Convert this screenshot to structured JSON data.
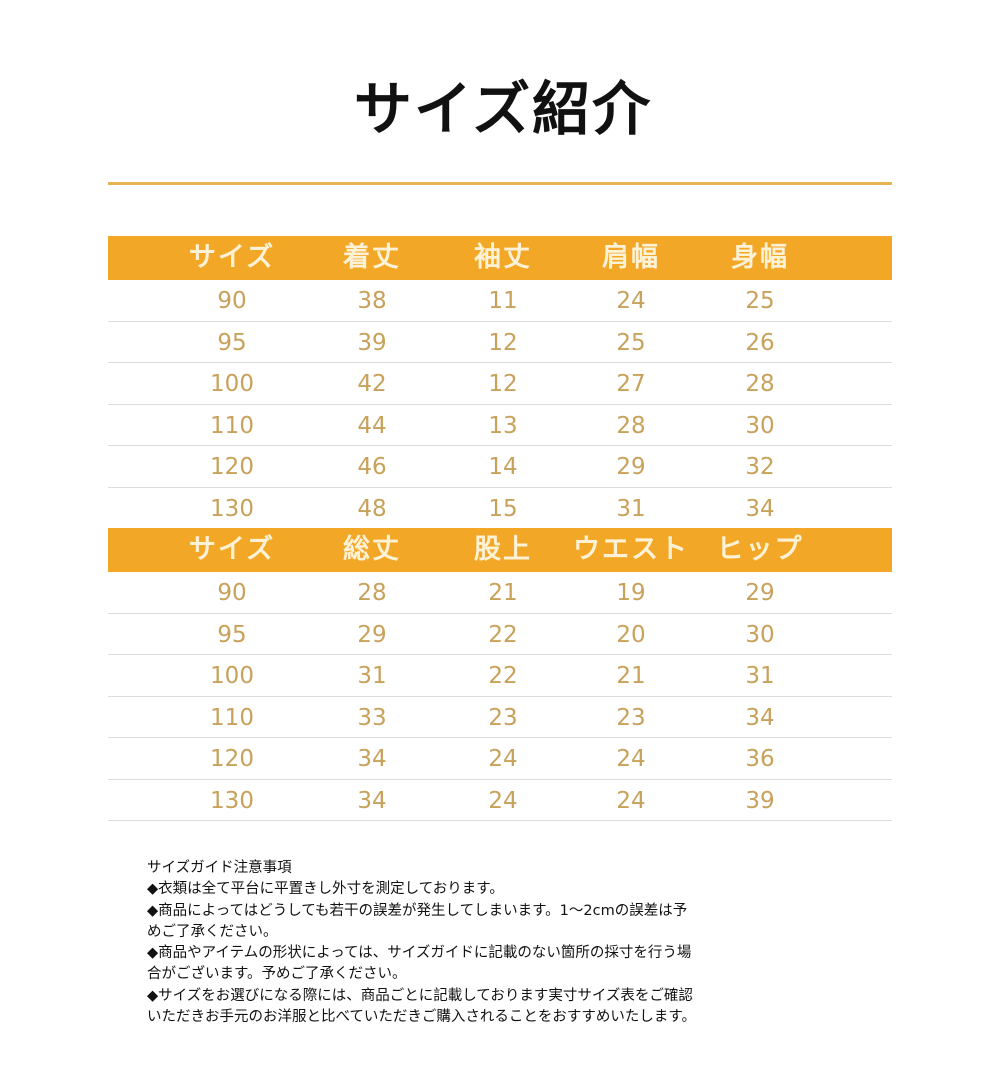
{
  "title": "サイズ紹介",
  "colors": {
    "header_bg": "#f2a826",
    "rule": "#e6b655",
    "value_text": "#c8a15a"
  },
  "tables": [
    {
      "headers": [
        "サイズ",
        "着丈",
        "袖丈",
        "肩幅",
        "身幅"
      ],
      "rows": [
        [
          "90",
          "38",
          "11",
          "24",
          "25"
        ],
        [
          "95",
          "39",
          "12",
          "25",
          "26"
        ],
        [
          "100",
          "42",
          "12",
          "27",
          "28"
        ],
        [
          "110",
          "44",
          "13",
          "28",
          "30"
        ],
        [
          "120",
          "46",
          "14",
          "29",
          "32"
        ],
        [
          "130",
          "48",
          "15",
          "31",
          "34"
        ]
      ]
    },
    {
      "headers": [
        "サイズ",
        "総丈",
        "股上",
        "ウエスト",
        "ヒップ"
      ],
      "rows": [
        [
          "90",
          "28",
          "21",
          "19",
          "29"
        ],
        [
          "95",
          "29",
          "22",
          "20",
          "30"
        ],
        [
          "100",
          "31",
          "22",
          "21",
          "31"
        ],
        [
          "110",
          "33",
          "23",
          "23",
          "34"
        ],
        [
          "120",
          "34",
          "24",
          "24",
          "36"
        ],
        [
          "130",
          "34",
          "24",
          "24",
          "39"
        ]
      ]
    }
  ],
  "notes": [
    "サイズガイド注意事項",
    "◆衣類は全て平台に平置きし外寸を測定しております。",
    "◆商品によってはどうしても若干の誤差が発生してしまいます。1～2cmの誤差は予",
    "めご了承ください。",
    "◆商品やアイテムの形状によっては、サイズガイドに記載のない箇所の採寸を行う場",
    "合がございます。予めご了承ください。",
    "◆サイズをお選びになる際には、商品ごとに記載しております実寸サイズ表をご確認",
    "いただきお手元のお洋服と比べていただきご購入されることをおすすめいたします。"
  ]
}
